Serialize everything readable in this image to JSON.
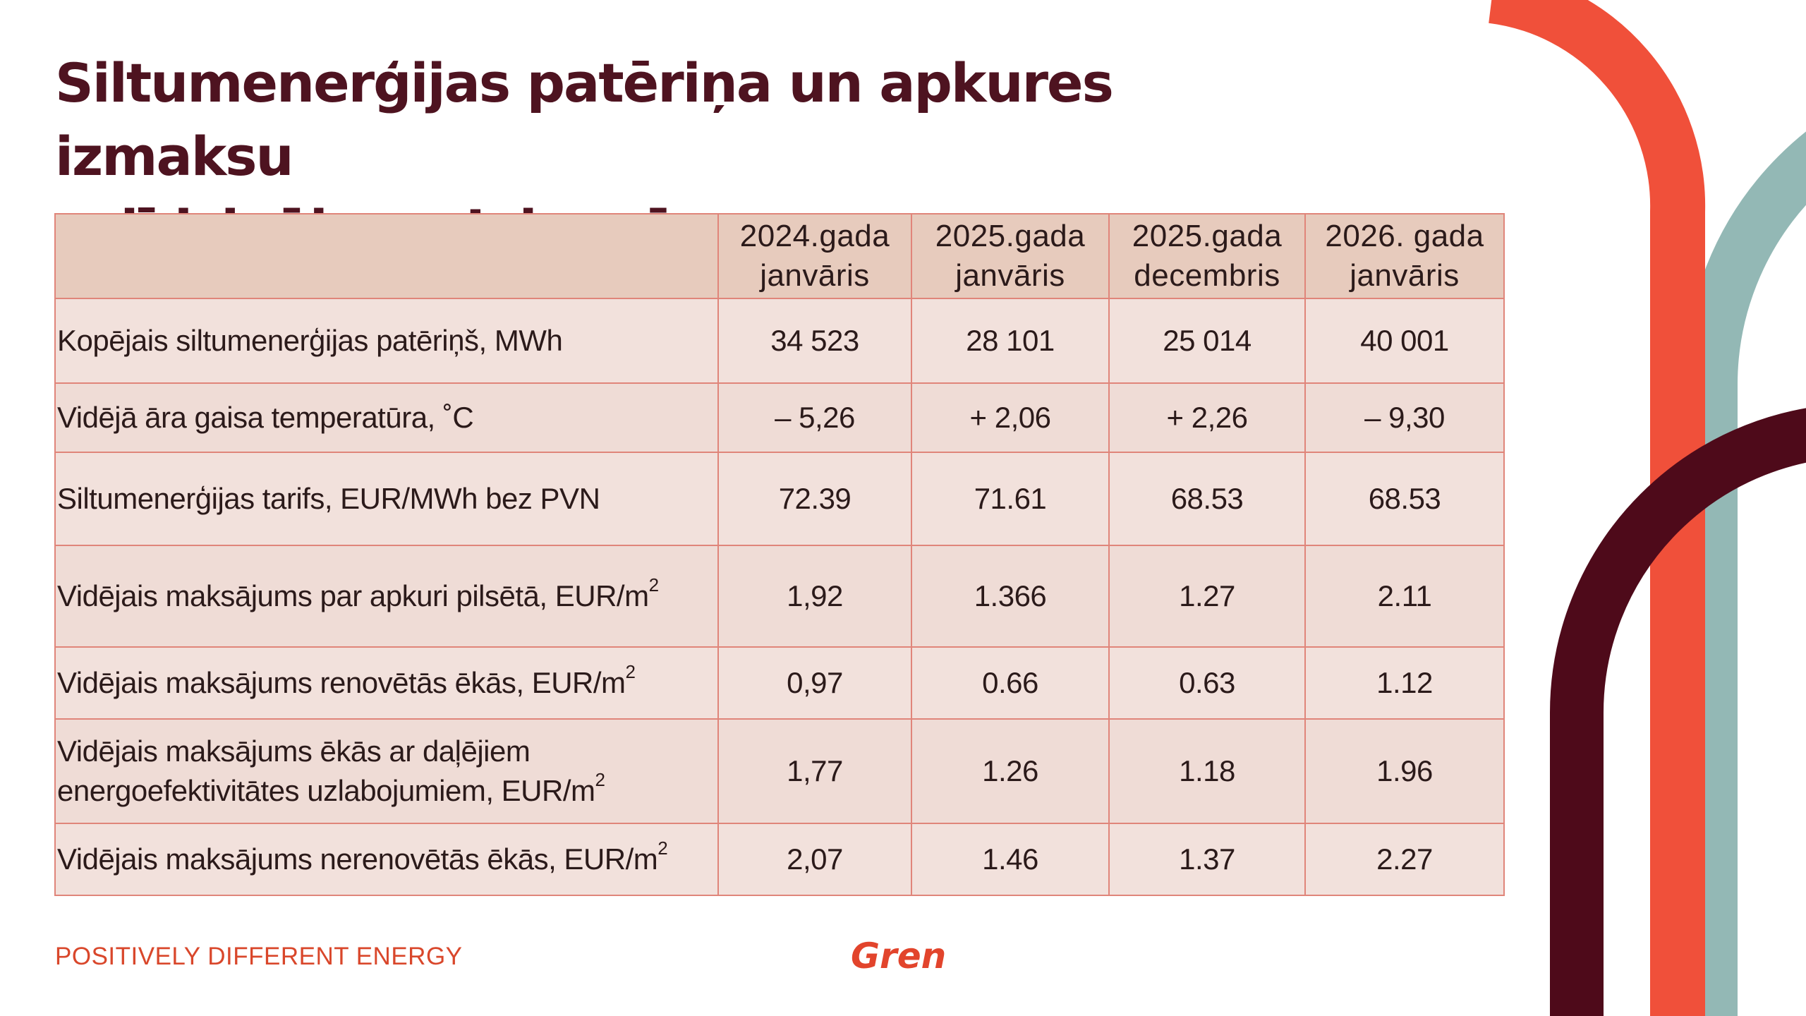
{
  "title": {
    "line1": "Siltumenerģijas patēriņa un apkures izmaksu",
    "line2": "salīdzinājums Jelgavā"
  },
  "table": {
    "headers": [
      "",
      "2024.gada janvāris",
      "2025.gada janvāris",
      "2025.gada decembris",
      "2026. gada janvāris"
    ],
    "header_lines": [
      [
        "",
        ""
      ],
      [
        "2024.gada",
        "janvāris"
      ],
      [
        "2025.gada",
        "janvāris"
      ],
      [
        "2025.gada",
        "decembris"
      ],
      [
        "2026. gada",
        "janvāris"
      ]
    ],
    "rows": [
      {
        "label": "Kopējais siltumenerģijas patēriņš, MWh",
        "values": [
          "34 523",
          "28 101",
          "25 014",
          "40 001"
        ]
      },
      {
        "label": "Vidējā āra gaisa temperatūra, ˚C",
        "values": [
          "– 5,26",
          "+ 2,06",
          "+ 2,26",
          "– 9,30"
        ]
      },
      {
        "label": "Siltumenerģijas tarifs, EUR/MWh bez PVN",
        "values": [
          "72.39",
          "71.61",
          "68.53",
          "68.53"
        ]
      },
      {
        "label": "Vidējais maksājums par apkuri pilsētā, EUR/m",
        "sup": "2",
        "values": [
          "1,92",
          "1.366",
          "1.27",
          "2.11"
        ]
      },
      {
        "label": "Vidējais maksājums renovētās ēkās, EUR/m",
        "sup": "2",
        "values": [
          "0,97",
          "0.66",
          "0.63",
          "1.12"
        ]
      },
      {
        "label_line1": "Vidējais maksājums ēkās ar daļējiem",
        "label_line2": "energoefektivitātes uzlabojumiem, EUR/m",
        "sup": "2",
        "values": [
          "1,77",
          "1.26",
          "1.18",
          "1.96"
        ]
      },
      {
        "label": "Vidējais maksājums nerenovētās ēkās, EUR/m",
        "sup": "2",
        "values": [
          "2,07",
          "1.46",
          "1.37",
          "2.27"
        ]
      }
    ]
  },
  "footer": {
    "tagline": "POSITIVELY DIFFERENT ENERGY",
    "logo_text": "Gren"
  },
  "colors": {
    "title": "#4e1320",
    "orange_arc": "#f0503a",
    "teal_arc": "#93b8b5",
    "maroon_arc": "#4e0a1a",
    "table_border": "#e0857a",
    "header_bg": "#e7cbbd",
    "row_bg": "#f2e1dc",
    "footer_text": "#d9472b",
    "logo": "#e2442c"
  },
  "icons": {
    "logo": "gren-logo-icon"
  }
}
